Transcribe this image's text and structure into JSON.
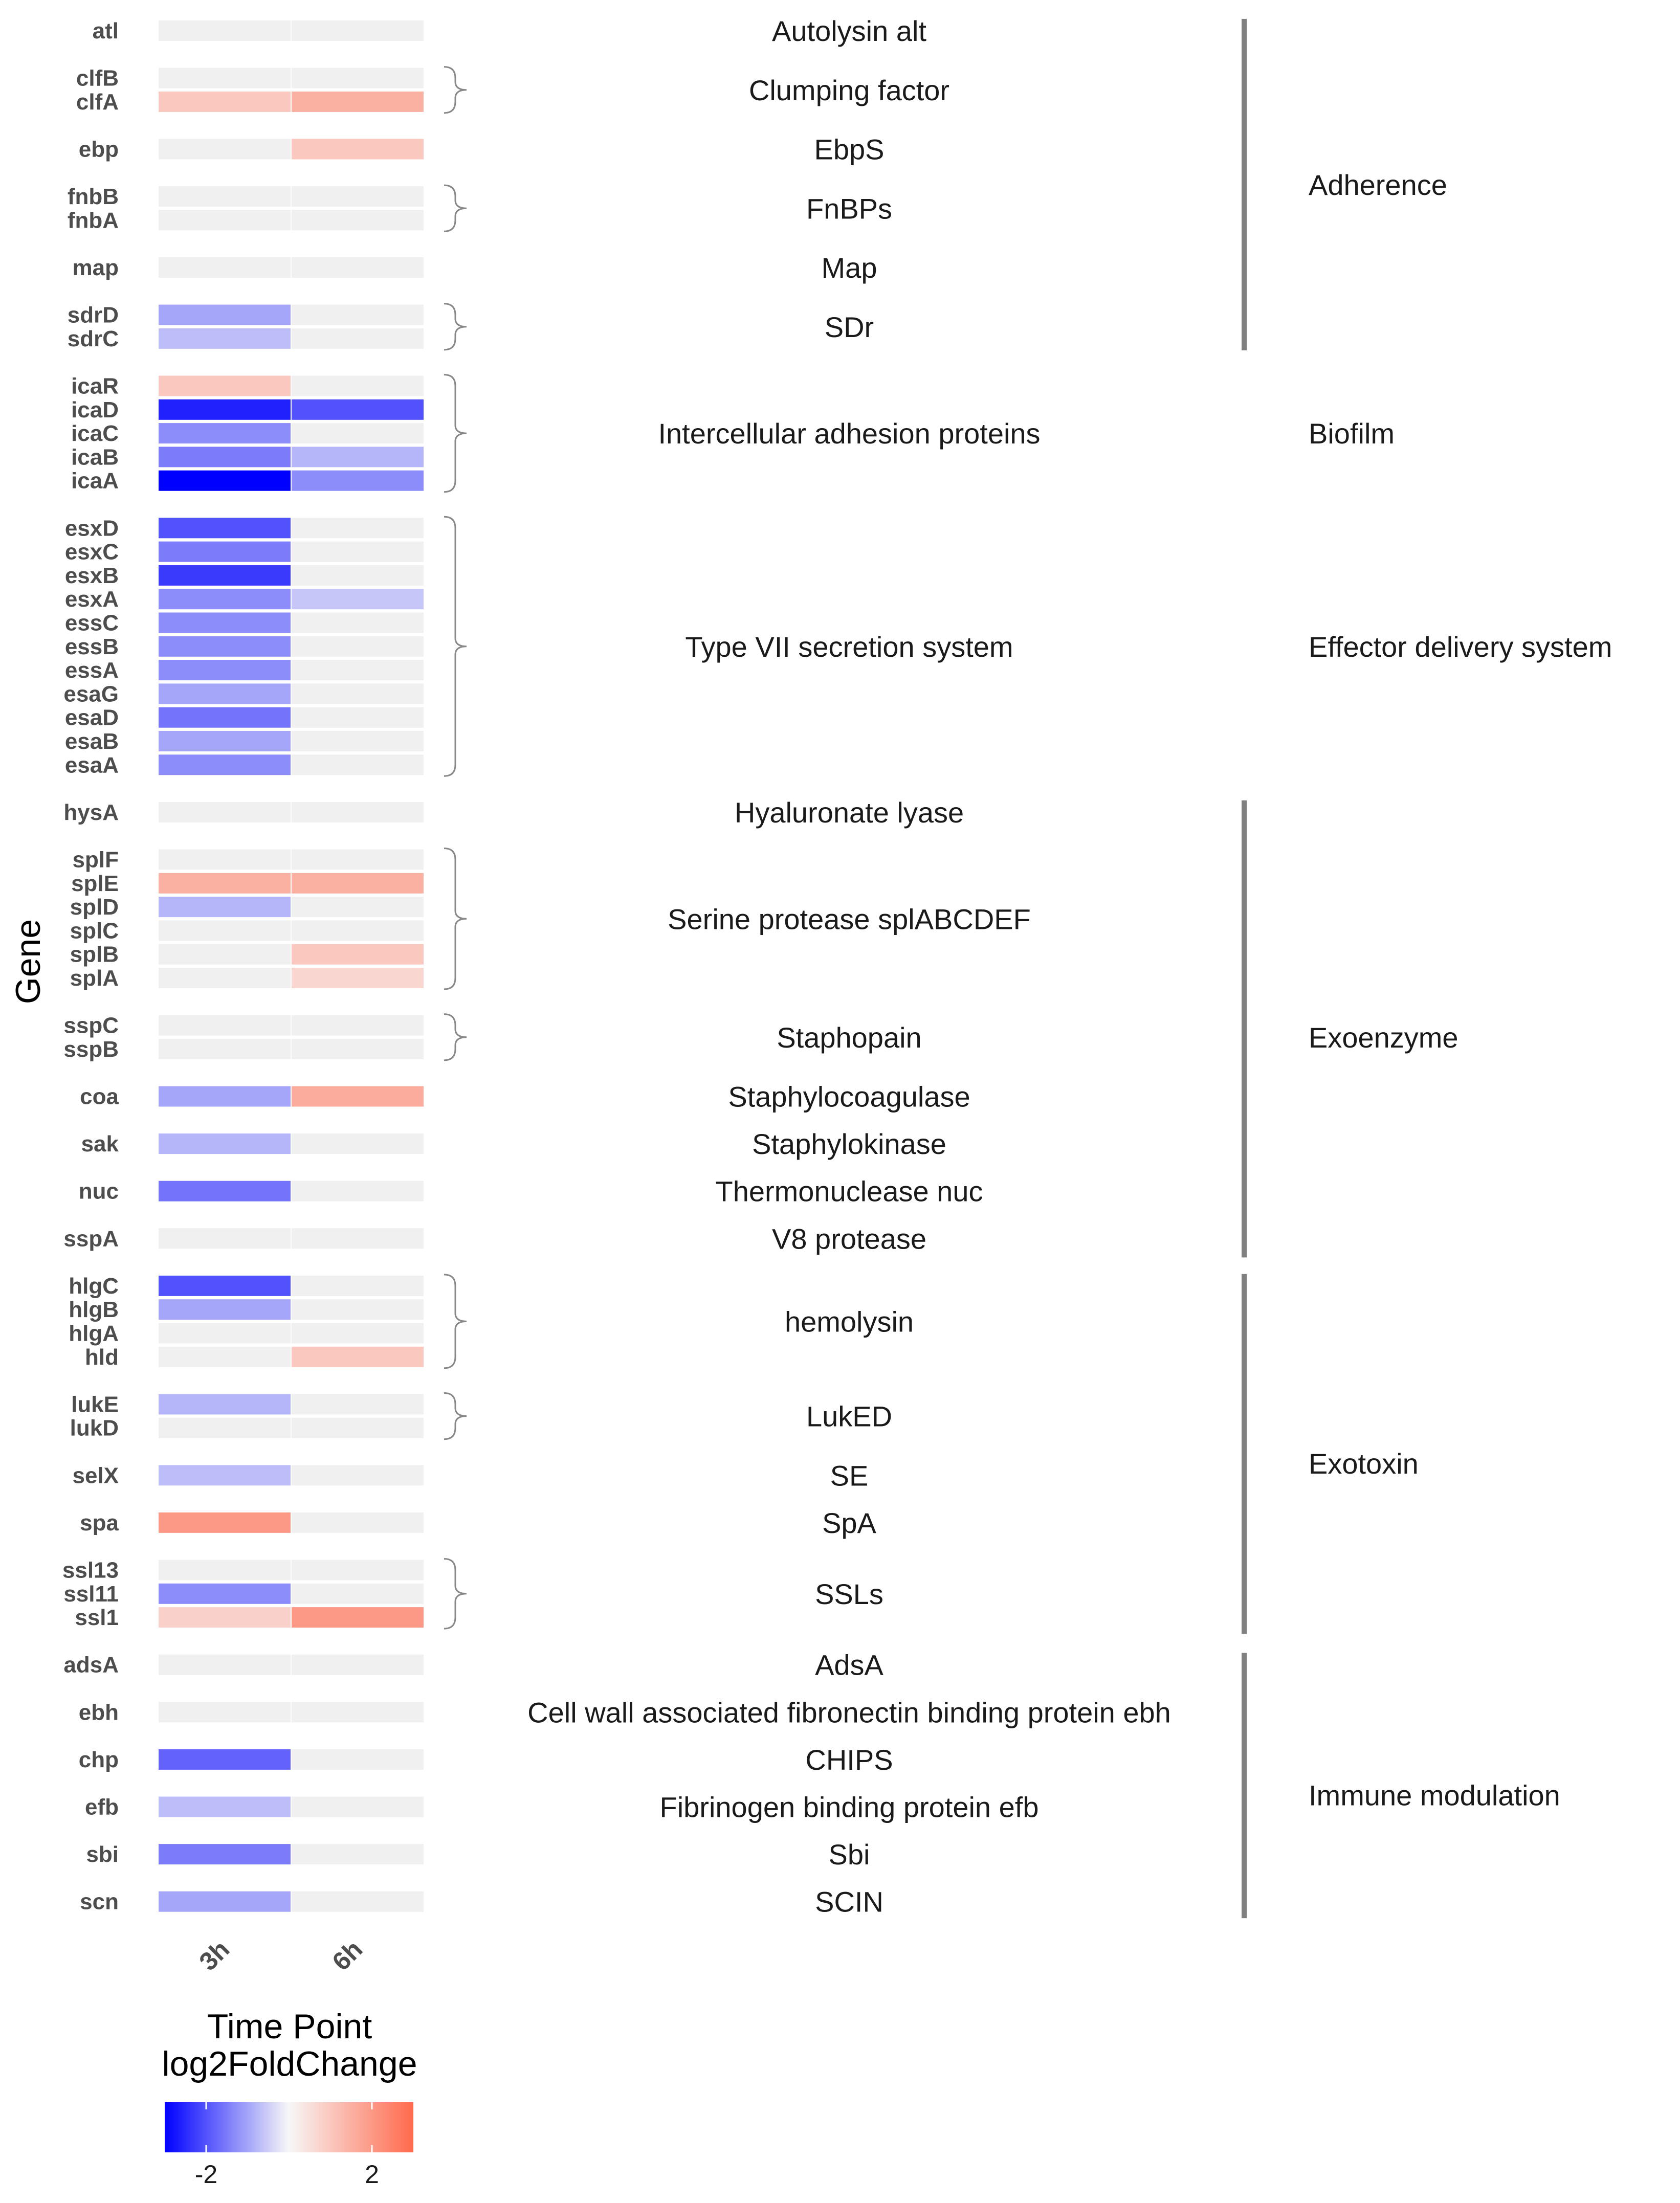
{
  "chart_data": {
    "type": "heatmap",
    "ylabel": "Gene",
    "xlabel": "Time Point",
    "x": [
      "3h",
      "6h"
    ],
    "legend": {
      "title": "log2FoldChange",
      "ticks": [
        "-2",
        "2"
      ],
      "range": [
        -3,
        3
      ],
      "low_color": "#0000ff",
      "mid_color": "#f7f7f7",
      "high_color": "#ff6a4d",
      "na_color": "#f0f0f0"
    },
    "rows": [
      {
        "gene": "atl",
        "slot": 0,
        "values": [
          null,
          null
        ]
      },
      {
        "gene": "clfB",
        "slot": 2,
        "values": [
          null,
          null
        ]
      },
      {
        "gene": "clfA",
        "slot": 3,
        "values": [
          1.0,
          1.5
        ]
      },
      {
        "gene": "ebp",
        "slot": 5,
        "values": [
          null,
          1.0
        ]
      },
      {
        "gene": "fnbB",
        "slot": 7,
        "values": [
          null,
          null
        ]
      },
      {
        "gene": "fnbA",
        "slot": 8,
        "values": [
          null,
          null
        ]
      },
      {
        "gene": "map",
        "slot": 10,
        "values": [
          null,
          null
        ]
      },
      {
        "gene": "sdrD",
        "slot": 12,
        "values": [
          -1.0,
          null
        ]
      },
      {
        "gene": "sdrC",
        "slot": 13,
        "values": [
          -0.7,
          null
        ]
      },
      {
        "gene": "icaR",
        "slot": 15,
        "values": [
          1.0,
          null
        ]
      },
      {
        "gene": "icaD",
        "slot": 16,
        "values": [
          -2.6,
          -2.0
        ]
      },
      {
        "gene": "icaC",
        "slot": 17,
        "values": [
          -1.3,
          null
        ]
      },
      {
        "gene": "icaB",
        "slot": 18,
        "values": [
          -1.5,
          -0.8
        ]
      },
      {
        "gene": "icaA",
        "slot": 19,
        "values": [
          -3.0,
          -1.3
        ]
      },
      {
        "gene": "esxD",
        "slot": 21,
        "values": [
          -2.0,
          null
        ]
      },
      {
        "gene": "esxC",
        "slot": 22,
        "values": [
          -1.5,
          null
        ]
      },
      {
        "gene": "esxB",
        "slot": 23,
        "values": [
          -2.3,
          null
        ]
      },
      {
        "gene": "esxA",
        "slot": 24,
        "values": [
          -1.3,
          -0.6
        ]
      },
      {
        "gene": "essC",
        "slot": 25,
        "values": [
          -1.3,
          null
        ]
      },
      {
        "gene": "essB",
        "slot": 26,
        "values": [
          -1.3,
          null
        ]
      },
      {
        "gene": "essA",
        "slot": 27,
        "values": [
          -1.3,
          null
        ]
      },
      {
        "gene": "esaG",
        "slot": 28,
        "values": [
          -1.0,
          null
        ]
      },
      {
        "gene": "esaD",
        "slot": 29,
        "values": [
          -1.6,
          null
        ]
      },
      {
        "gene": "esaB",
        "slot": 30,
        "values": [
          -1.0,
          null
        ]
      },
      {
        "gene": "esaA",
        "slot": 31,
        "values": [
          -1.3,
          null
        ]
      },
      {
        "gene": "hysA",
        "slot": 33,
        "values": [
          null,
          null
        ]
      },
      {
        "gene": "splF",
        "slot": 35,
        "values": [
          null,
          null
        ]
      },
      {
        "gene": "splE",
        "slot": 36,
        "values": [
          1.5,
          1.5
        ]
      },
      {
        "gene": "splD",
        "slot": 37,
        "values": [
          -0.8,
          null
        ]
      },
      {
        "gene": "splC",
        "slot": 38,
        "values": [
          null,
          null
        ]
      },
      {
        "gene": "splB",
        "slot": 39,
        "values": [
          null,
          1.0
        ]
      },
      {
        "gene": "splA",
        "slot": 40,
        "values": [
          null,
          0.7
        ]
      },
      {
        "gene": "sspC",
        "slot": 42,
        "values": [
          null,
          null
        ]
      },
      {
        "gene": "sspB",
        "slot": 43,
        "values": [
          null,
          null
        ]
      },
      {
        "gene": "coa",
        "slot": 45,
        "values": [
          -1.0,
          1.6
        ]
      },
      {
        "gene": "sak",
        "slot": 47,
        "values": [
          -0.8,
          null
        ]
      },
      {
        "gene": "nuc",
        "slot": 49,
        "values": [
          -1.6,
          null
        ]
      },
      {
        "gene": "sspA",
        "slot": 51,
        "values": [
          null,
          null
        ]
      },
      {
        "gene": "hlgC",
        "slot": 53,
        "values": [
          -2.0,
          null
        ]
      },
      {
        "gene": "hlgB",
        "slot": 54,
        "values": [
          -1.0,
          null
        ]
      },
      {
        "gene": "hlgA",
        "slot": 55,
        "values": [
          null,
          null
        ]
      },
      {
        "gene": "hld",
        "slot": 56,
        "values": [
          null,
          1.0
        ]
      },
      {
        "gene": "lukE",
        "slot": 58,
        "values": [
          -0.8,
          null
        ]
      },
      {
        "gene": "lukD",
        "slot": 59,
        "values": [
          null,
          null
        ]
      },
      {
        "gene": "selX",
        "slot": 61,
        "values": [
          -0.7,
          null
        ]
      },
      {
        "gene": "spa",
        "slot": 63,
        "values": [
          2.0,
          null
        ]
      },
      {
        "gene": "ssl13",
        "slot": 65,
        "values": [
          null,
          null
        ]
      },
      {
        "gene": "ssl11",
        "slot": 66,
        "values": [
          -1.3,
          null
        ]
      },
      {
        "gene": "ssl1",
        "slot": 67,
        "values": [
          0.8,
          2.0
        ]
      },
      {
        "gene": "adsA",
        "slot": 69,
        "values": [
          null,
          null
        ]
      },
      {
        "gene": "ebh",
        "slot": 71,
        "values": [
          null,
          null
        ]
      },
      {
        "gene": "chp",
        "slot": 73,
        "values": [
          -1.8,
          null
        ]
      },
      {
        "gene": "efb",
        "slot": 75,
        "values": [
          -0.7,
          null
        ]
      },
      {
        "gene": "sbi",
        "slot": 77,
        "values": [
          -1.5,
          null
        ]
      },
      {
        "gene": "scn",
        "slot": 79,
        "values": [
          -1.0,
          null
        ]
      }
    ],
    "descriptions": [
      {
        "label": "Autolysin alt",
        "slot": 0
      },
      {
        "label": "Clumping factor",
        "slot": 2.5
      },
      {
        "label": "EbpS",
        "slot": 5
      },
      {
        "label": "FnBPs",
        "slot": 7.5
      },
      {
        "label": "Map",
        "slot": 10
      },
      {
        "label": "SDr",
        "slot": 12.5
      },
      {
        "label": "Intercellular adhesion proteins",
        "slot": 17
      },
      {
        "label": "Type VII secretion system",
        "slot": 26
      },
      {
        "label": "Hyaluronate lyase",
        "slot": 33
      },
      {
        "label": "Serine protease splABCDEF",
        "slot": 37.5
      },
      {
        "label": "Staphopain",
        "slot": 42.5
      },
      {
        "label": "Staphylocoagulase",
        "slot": 45
      },
      {
        "label": "Staphylokinase",
        "slot": 47
      },
      {
        "label": "Thermonuclease nuc",
        "slot": 49
      },
      {
        "label": "V8 protease",
        "slot": 51
      },
      {
        "label": "hemolysin",
        "slot": 54.5
      },
      {
        "label": "LukED",
        "slot": 58.5
      },
      {
        "label": "SE",
        "slot": 61
      },
      {
        "label": "SpA",
        "slot": 63
      },
      {
        "label": "SSLs",
        "slot": 66
      },
      {
        "label": "AdsA",
        "slot": 69
      },
      {
        "label": "Cell wall associated fibronectin binding protein ebh",
        "slot": 71
      },
      {
        "label": "CHIPS",
        "slot": 73
      },
      {
        "label": "Fibrinogen binding protein efb",
        "slot": 75
      },
      {
        "label": "Sbi",
        "slot": 77
      },
      {
        "label": "SCIN",
        "slot": 79
      }
    ],
    "braces": [
      {
        "from": 2,
        "to": 3
      },
      {
        "from": 7,
        "to": 8
      },
      {
        "from": 12,
        "to": 13
      },
      {
        "from": 15,
        "to": 19
      },
      {
        "from": 21,
        "to": 31
      },
      {
        "from": 35,
        "to": 40
      },
      {
        "from": 42,
        "to": 43
      },
      {
        "from": 53,
        "to": 56
      },
      {
        "from": 58,
        "to": 59
      },
      {
        "from": 65,
        "to": 67
      }
    ],
    "categories": [
      {
        "label": "Adherence",
        "slot": 6.5,
        "bar_from": -0.5,
        "bar_to": 13.5
      },
      {
        "label": "Biofilm",
        "slot": 17,
        "bar_from": null,
        "bar_to": null
      },
      {
        "label": "Effector delivery system",
        "slot": 26,
        "bar_from": null,
        "bar_to": null
      },
      {
        "label": "Exoenzyme",
        "slot": 42.5,
        "bar_from": 32.5,
        "bar_to": 51.8
      },
      {
        "label": "Exotoxin",
        "slot": 60.5,
        "bar_from": 52.5,
        "bar_to": 67.7
      },
      {
        "label": "Immune modulation",
        "slot": 74.5,
        "bar_from": 68.5,
        "bar_to": 79.7
      }
    ]
  }
}
